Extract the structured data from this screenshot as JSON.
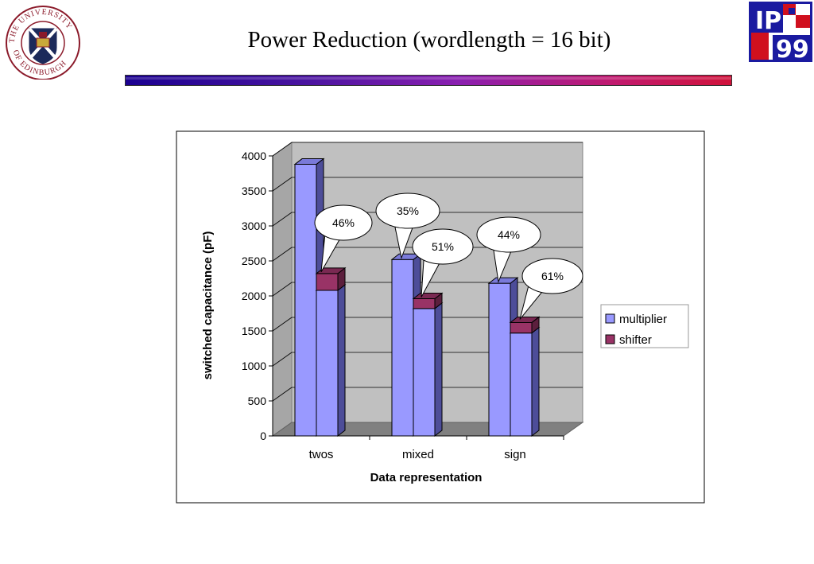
{
  "slide": {
    "title": "Power Reduction (wordlength = 16 bit)",
    "left_logo_text": "THE UNIVERSITY OF EDINBURGH",
    "right_logo_text": "IP 99"
  },
  "chart_data": {
    "type": "bar",
    "categories": [
      "twos",
      "mixed",
      "sign"
    ],
    "series": [
      {
        "name": "multiplier",
        "values": [
          3880,
          2520,
          2180
        ],
        "color": "#9999ff"
      },
      {
        "name": "shifter",
        "values": [
          2320,
          1960,
          1620
        ],
        "base": [
          2080,
          1820,
          1470
        ],
        "color": "#993366"
      }
    ],
    "xlabel": "Data representation",
    "ylabel": "switched capacitance (pF)",
    "ylim": [
      0,
      4000
    ],
    "yticks": [
      0,
      500,
      1000,
      1500,
      2000,
      2500,
      3000,
      3500,
      4000
    ],
    "grid": true,
    "legend": "right",
    "annotations": [
      {
        "text": "46%",
        "category": "twos"
      },
      {
        "text": "35%",
        "category": "mixed"
      },
      {
        "text": "51%",
        "category": "mixed"
      },
      {
        "text": "44%",
        "category": "sign"
      },
      {
        "text": "61%",
        "category": "sign"
      }
    ]
  }
}
